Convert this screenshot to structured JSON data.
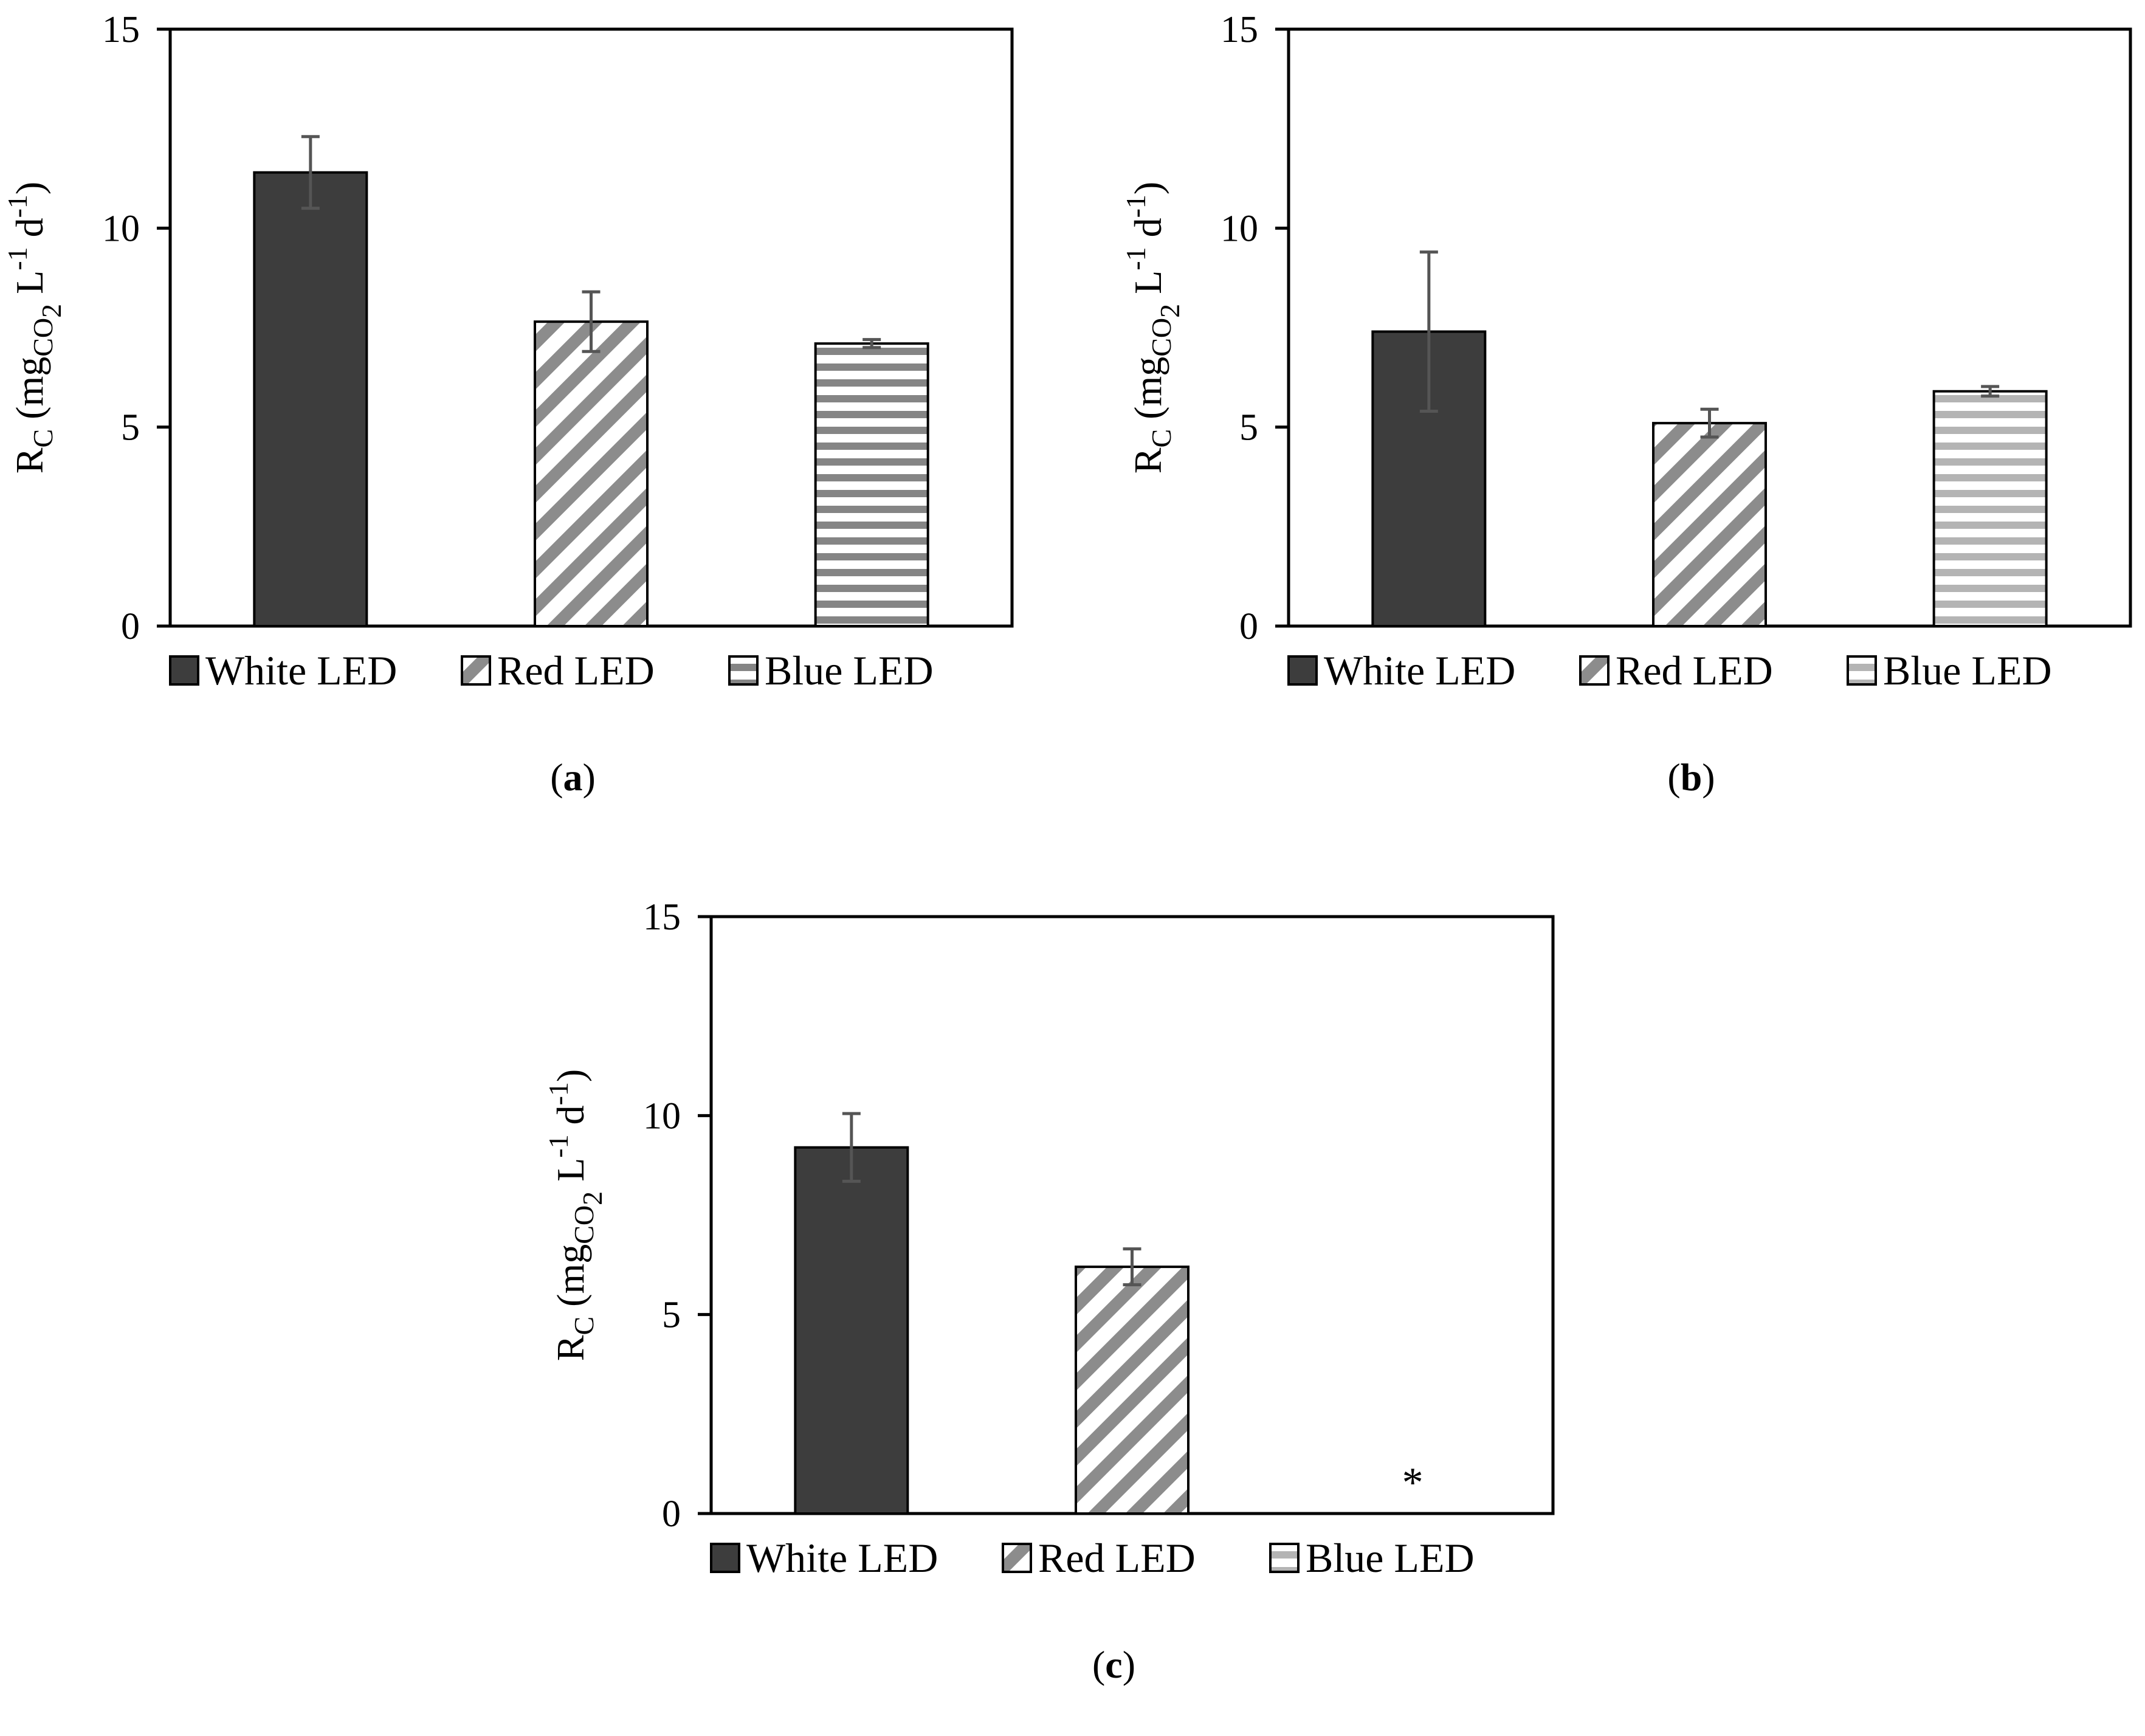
{
  "chart_data": [
    {
      "type": "bar",
      "panel": "(a)",
      "caption_letter": "a",
      "categories": [
        "White LED",
        "Red LED",
        "Blue LED"
      ],
      "values": [
        11.4,
        7.65,
        7.1
      ],
      "errors": [
        0.9,
        0.75,
        0.1
      ],
      "ylim": [
        0,
        15
      ],
      "yticks": [
        "0",
        "5",
        "10",
        "15"
      ],
      "ylabel": {
        "main": "R",
        "sub_c": "C",
        "open": " (mg",
        "sub_co": "CO",
        "sub_2": "2",
        "l": " L",
        "exp1": "-1",
        "d": " d",
        "exp2": "-1",
        "close": ")"
      },
      "legend": [
        "White LED",
        "Red LED",
        "Blue LED"
      ],
      "annotation": ""
    },
    {
      "type": "bar",
      "panel": "(b)",
      "caption_letter": "b",
      "categories": [
        "White LED",
        "Red LED",
        "Blue LED"
      ],
      "values": [
        7.4,
        5.1,
        5.9
      ],
      "errors": [
        2.0,
        0.35,
        0.12
      ],
      "ylim": [
        0,
        15
      ],
      "yticks": [
        "0",
        "5",
        "10",
        "15"
      ],
      "ylabel": {
        "main": "R",
        "sub_c": "C",
        "open": " (mg",
        "sub_co": "CO",
        "sub_2": "2",
        "l": " L",
        "exp1": "-1",
        "d": " d",
        "exp2": "-1",
        "close": ")"
      },
      "legend": [
        "White LED",
        "Red LED",
        "Blue LED"
      ],
      "annotation": ""
    },
    {
      "type": "bar",
      "panel": "(c)",
      "caption_letter": "c",
      "categories": [
        "White LED",
        "Red LED",
        "Blue LED"
      ],
      "values": [
        9.2,
        6.2,
        0
      ],
      "errors": [
        0.85,
        0.45,
        0
      ],
      "ylim": [
        0,
        15
      ],
      "yticks": [
        "0",
        "5",
        "10",
        "15"
      ],
      "ylabel": {
        "main": "R",
        "sub_c": "C",
        "open": " (mg",
        "sub_co": "CO",
        "sub_2": "2",
        "l": " L",
        "exp1": "-1",
        "d": " d",
        "exp2": "-1",
        "close": ")"
      },
      "legend": [
        "White LED",
        "Red LED",
        "Blue LED"
      ],
      "annotation": "*"
    }
  ],
  "colors": {
    "white_led": "#3d3d3d",
    "red_led_stripe": "#8c8c8c",
    "blue_led_stripe_a": "#858585",
    "blue_led_stripe_light": "#b4b4b4",
    "error_bar": "#555555",
    "axis": "#000000"
  }
}
